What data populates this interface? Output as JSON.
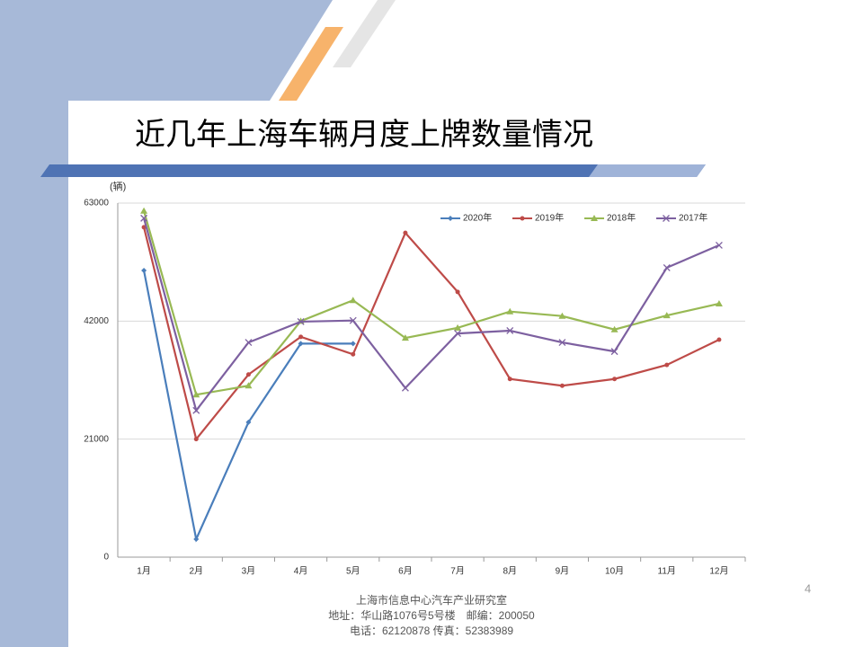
{
  "chart_data": {
    "type": "line",
    "title": "近几年上海车辆月度上牌数量情况",
    "y_unit": "(辆)",
    "categories": [
      "1月",
      "2月",
      "3月",
      "4月",
      "5月",
      "6月",
      "7月",
      "8月",
      "9月",
      "10月",
      "11月",
      "12月"
    ],
    "series": [
      {
        "name": "2020年",
        "color": "#4a7ebb",
        "marker": "diamond",
        "values": [
          51000,
          3200,
          24000,
          38000,
          38000,
          null,
          null,
          null,
          null,
          null,
          null,
          null
        ]
      },
      {
        "name": "2019年",
        "color": "#be4b48",
        "marker": "circle",
        "values": [
          58700,
          21000,
          32500,
          39200,
          36100,
          57700,
          47200,
          31700,
          30500,
          31700,
          34200,
          38700
        ]
      },
      {
        "name": "2018年",
        "color": "#98b954",
        "marker": "triangle",
        "values": [
          61600,
          28900,
          30500,
          42000,
          45700,
          39000,
          40800,
          43700,
          42900,
          40500,
          43000,
          45100
        ]
      },
      {
        "name": "2017年",
        "color": "#7d60a0",
        "marker": "x",
        "values": [
          60300,
          26100,
          38200,
          41900,
          42100,
          30100,
          39800,
          40300,
          38200,
          36600,
          51500,
          55500
        ]
      }
    ],
    "ylim": [
      0,
      63000
    ],
    "yticks": [
      0,
      21000,
      42000,
      63000
    ],
    "grid": true,
    "legend": "top-right"
  },
  "footer": [
    "上海市信息中心汽车产业研究室",
    "地址：华山路1076号5号楼　邮编：200050",
    "电话：62120878  传真：52383989"
  ],
  "page_number": "4"
}
